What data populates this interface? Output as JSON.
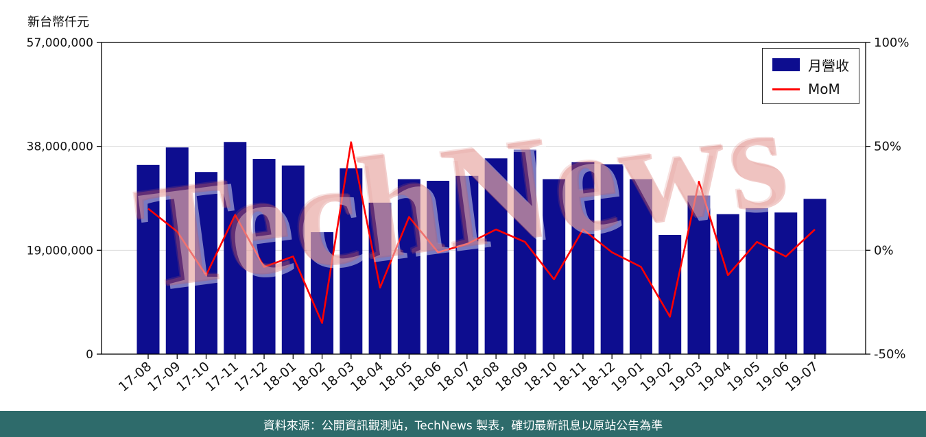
{
  "page": {
    "y_axis_title": "新台幣仟元",
    "watermark": "TechNews",
    "footer": "資料來源：公開資訊觀測站，TechNews 製表，確切最新訊息以原站公告為準",
    "colors": {
      "bar": "#0d0d8f",
      "line": "#ff0000",
      "footer_bg": "#2e6b6b",
      "grid": "#d9d9d9",
      "axis": "#000000",
      "watermark": "rgba(213,94,86,0.30)"
    }
  },
  "chart_data": {
    "type": "bar",
    "title": "",
    "xlabel": "",
    "ylabel": "新台幣仟元",
    "grid": "horizontal-light",
    "categories": [
      "17-08",
      "17-09",
      "17-10",
      "17-11",
      "17-12",
      "18-01",
      "18-02",
      "18-03",
      "18-04",
      "18-05",
      "18-06",
      "18-07",
      "18-08",
      "18-09",
      "18-10",
      "18-11",
      "18-12",
      "19-01",
      "19-02",
      "19-03",
      "19-04",
      "19-05",
      "19-06",
      "19-07"
    ],
    "series": [
      {
        "name": "月營收",
        "type": "bar",
        "axis": "left",
        "color": "#0d0d8f",
        "values": [
          34600000,
          37800000,
          33300000,
          38800000,
          35700000,
          34500000,
          22300000,
          34000000,
          27700000,
          32000000,
          31700000,
          32600000,
          35800000,
          37400000,
          32000000,
          35100000,
          34700000,
          32000000,
          21800000,
          29000000,
          25600000,
          26700000,
          25900000,
          28400000
        ]
      },
      {
        "name": "MoM",
        "type": "line",
        "axis": "right",
        "color": "#ff0000",
        "values": [
          20,
          9,
          -12,
          17,
          -8,
          -3,
          -35,
          52,
          -18,
          16,
          -1,
          3,
          10,
          4,
          -14,
          10,
          -1,
          -8,
          -32,
          33,
          -12,
          4,
          -3,
          10
        ]
      }
    ],
    "left_axis": {
      "title": "新台幣仟元",
      "range": [
        0,
        57000000
      ],
      "tick_values": [
        0,
        19000000,
        38000000,
        57000000
      ],
      "tick_labels": [
        "0",
        "19,000,000",
        "38,000,000",
        "57,000,000"
      ],
      "grid_values": [
        19000000,
        38000000
      ]
    },
    "right_axis": {
      "range": [
        -50,
        100
      ],
      "tick_values": [
        -50,
        0,
        50,
        100
      ],
      "tick_labels": [
        "-50%",
        "0%",
        "50%",
        "100%"
      ]
    },
    "legend": {
      "position": "top-right",
      "entries": [
        "月營收",
        "MoM"
      ]
    }
  }
}
